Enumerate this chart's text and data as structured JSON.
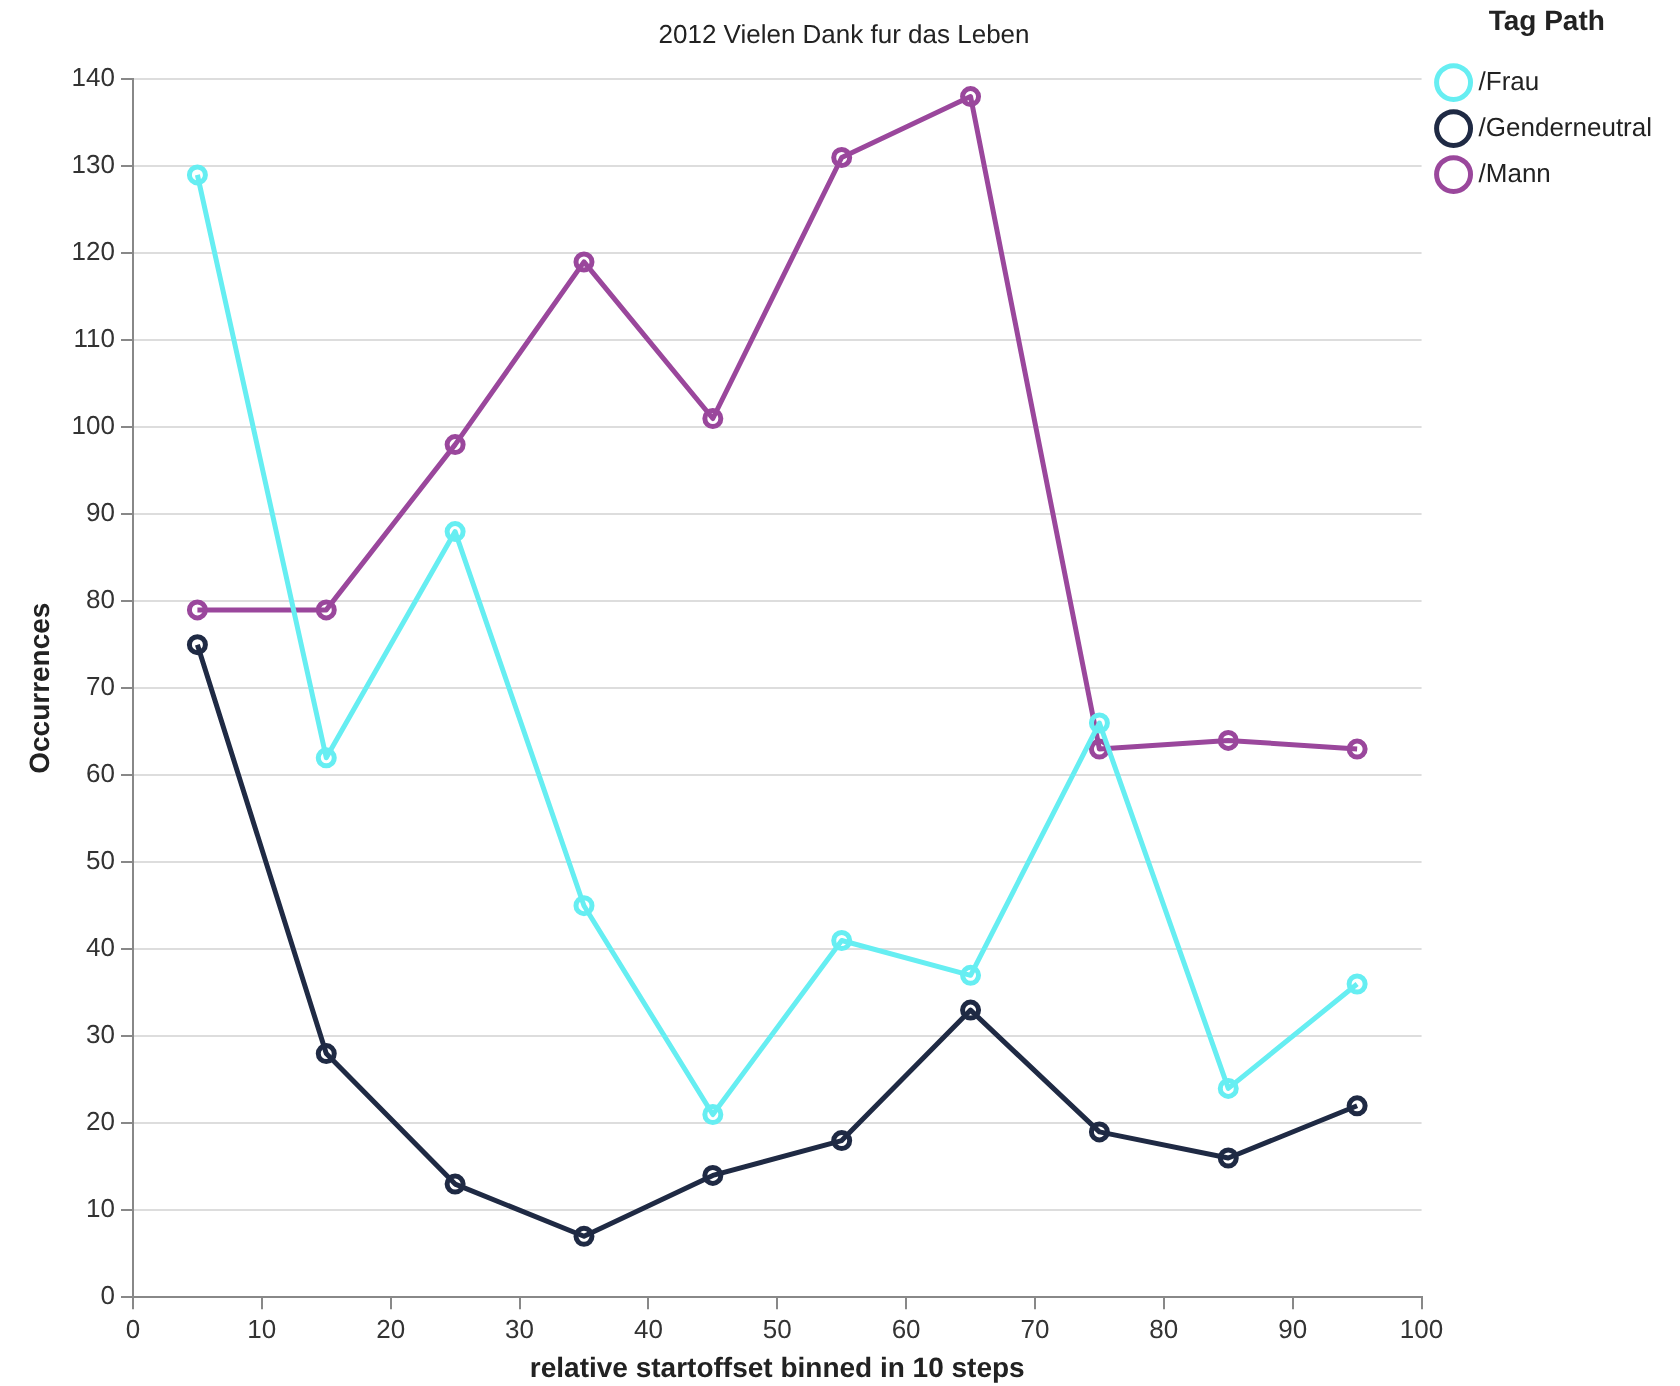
{
  "chart_data": {
    "type": "line",
    "title": "2012 Vielen Dank fur das Leben",
    "xlabel": "relative startoffset binned in 10 steps",
    "ylabel": "Occurrences",
    "legend_title": "Tag Path",
    "x": [
      5,
      15,
      25,
      35,
      45,
      55,
      65,
      75,
      85,
      95
    ],
    "series": [
      {
        "name": "/Frau",
        "color": "#66eef2",
        "values": [
          129,
          62,
          88,
          45,
          21,
          41,
          37,
          66,
          24,
          36
        ]
      },
      {
        "name": "/Genderneutral",
        "color": "#1f2a44",
        "values": [
          75,
          28,
          13,
          7,
          14,
          18,
          33,
          19,
          16,
          22
        ]
      },
      {
        "name": "/Mann",
        "color": "#9a479c",
        "values": [
          79,
          79,
          98,
          119,
          101,
          131,
          138,
          63,
          64,
          63
        ]
      }
    ],
    "xlim": [
      0,
      100
    ],
    "xticks": [
      0,
      10,
      20,
      30,
      40,
      50,
      60,
      70,
      80,
      90,
      100
    ],
    "ylim": [
      0,
      140
    ],
    "yticks": [
      0,
      10,
      20,
      30,
      40,
      50,
      60,
      70,
      80,
      90,
      100,
      110,
      120,
      130,
      140
    ],
    "grid": "y",
    "legend": "top right",
    "marker": "circle",
    "line_style": "solid"
  }
}
